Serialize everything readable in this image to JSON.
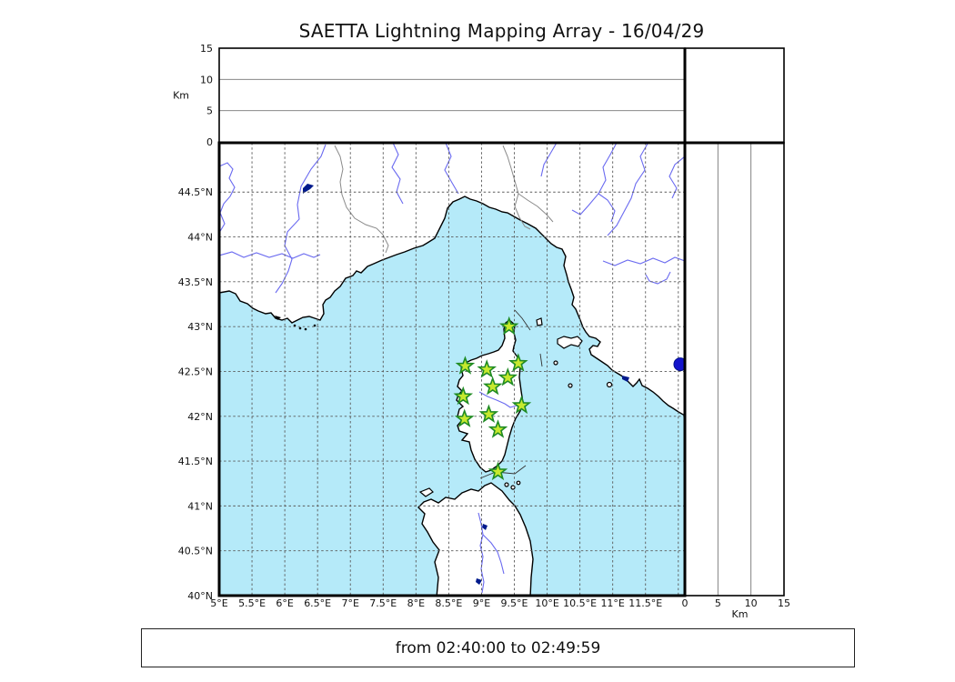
{
  "chart_data": {
    "type": "scatter",
    "title": "SAETTA Lightning Mapping Array - 16/04/29",
    "time_window": "from 02:40:00 to 02:49:59",
    "map_panel": {
      "xlim": [
        5,
        12.1
      ],
      "ylim": [
        40,
        45.05
      ],
      "grid": "dashed",
      "xticks": [
        {
          "value": 5,
          "label": "5°E"
        },
        {
          "value": 5.5,
          "label": "5.5°E"
        },
        {
          "value": 6,
          "label": "6°E"
        },
        {
          "value": 6.5,
          "label": "6.5°E"
        },
        {
          "value": 7,
          "label": "7°E"
        },
        {
          "value": 7.5,
          "label": "7.5°E"
        },
        {
          "value": 8,
          "label": "8°E"
        },
        {
          "value": 8.5,
          "label": "8.5°E"
        },
        {
          "value": 9,
          "label": "9°E"
        },
        {
          "value": 9.5,
          "label": "9.5°E"
        },
        {
          "value": 10,
          "label": "10°E"
        },
        {
          "value": 10.5,
          "label": "10.5°E"
        },
        {
          "value": 11,
          "label": "11°E"
        },
        {
          "value": 11.5,
          "label": "11.5°E"
        }
      ],
      "xgridlines": [
        5.5,
        6,
        6.5,
        7,
        7.5,
        8,
        8.5,
        9,
        9.5,
        10,
        10.5,
        11,
        11.5,
        12
      ],
      "yticks": [
        {
          "value": 44.5,
          "label": "44.5°N"
        },
        {
          "value": 44,
          "label": "44°N"
        },
        {
          "value": 43.5,
          "label": "43.5°N"
        },
        {
          "value": 43,
          "label": "43°N"
        },
        {
          "value": 42.5,
          "label": "42.5°N"
        },
        {
          "value": 42,
          "label": "42°N"
        },
        {
          "value": 41.5,
          "label": "41.5°N"
        },
        {
          "value": 41,
          "label": "41°N"
        },
        {
          "value": 40.5,
          "label": "40.5°N"
        },
        {
          "value": 40,
          "label": "40°N"
        }
      ],
      "ygridlines": [
        44.5,
        44,
        43.5,
        43,
        42.5,
        42,
        41.5,
        41,
        40.5
      ]
    },
    "altitude_panels": {
      "unit_label": "Km",
      "lim": [
        0,
        15
      ],
      "ticks": [
        {
          "value": 0,
          "label": "0"
        },
        {
          "value": 5,
          "label": "5"
        },
        {
          "value": 10,
          "label": "10"
        },
        {
          "value": 15,
          "label": "15"
        }
      ],
      "gridline_values": [
        5,
        10
      ]
    },
    "stations": {
      "name": "LMA stations",
      "marker": "star",
      "fill": "#c6e92e",
      "stroke": "#1f8b24",
      "points": [
        {
          "lon": 9.42,
          "lat": 43.0
        },
        {
          "lon": 8.75,
          "lat": 42.56
        },
        {
          "lon": 9.08,
          "lat": 42.52
        },
        {
          "lon": 9.56,
          "lat": 42.59
        },
        {
          "lon": 9.4,
          "lat": 42.43
        },
        {
          "lon": 9.17,
          "lat": 42.33
        },
        {
          "lon": 8.72,
          "lat": 42.22
        },
        {
          "lon": 9.61,
          "lat": 42.12
        },
        {
          "lon": 9.11,
          "lat": 42.02
        },
        {
          "lon": 8.74,
          "lat": 41.97
        },
        {
          "lon": 9.25,
          "lat": 41.85
        },
        {
          "lon": 9.25,
          "lat": 41.38
        }
      ]
    },
    "sources": {
      "name": "lightning source",
      "marker": "circle",
      "color": "#1414cc",
      "points": [
        {
          "lon": 12.03,
          "lat": 42.58
        }
      ]
    },
    "colors": {
      "sea": "#b5eaf9",
      "land": "#ffffff",
      "coastline": "#000000",
      "river": "#6a6af0",
      "admin_border": "#8a8a8a",
      "lake": "#001a8c",
      "grid": "#5a5a5a",
      "panel_gridline": "#777777"
    }
  }
}
